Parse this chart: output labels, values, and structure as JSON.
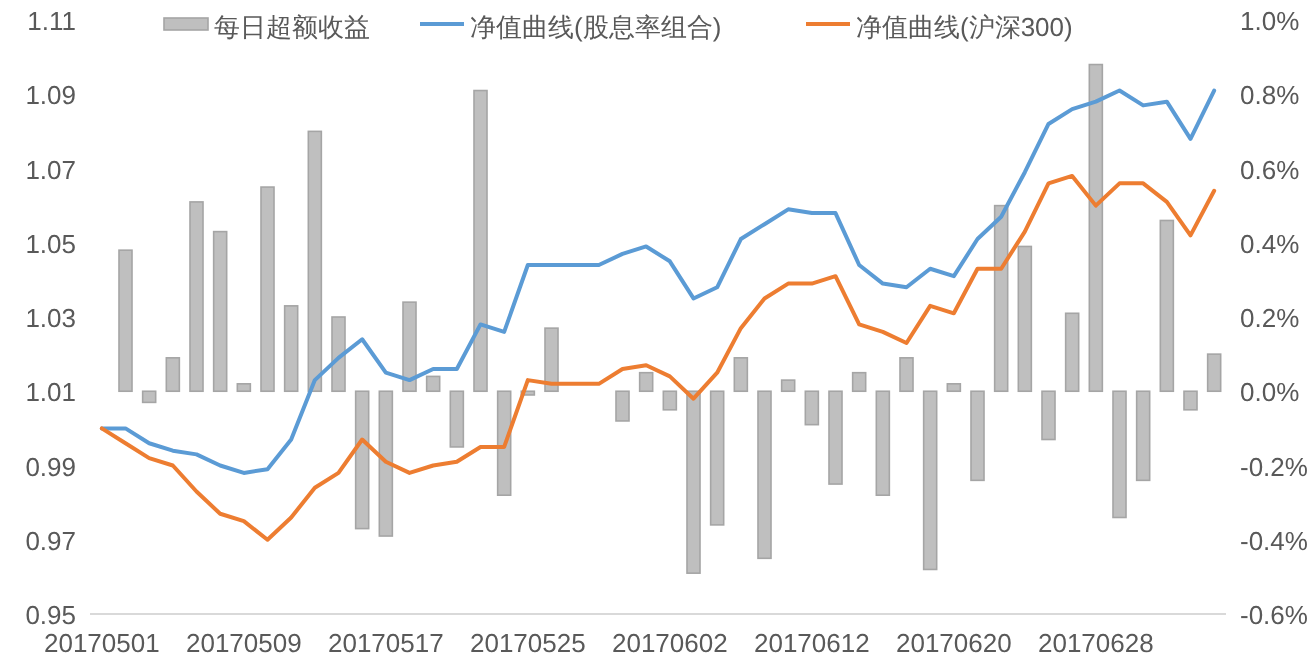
{
  "chart_data": {
    "type": "bar",
    "legend": "top",
    "categories": [
      "20170501",
      null,
      null,
      null,
      null,
      null,
      "20170509",
      null,
      null,
      null,
      null,
      null,
      "20170517",
      null,
      null,
      null,
      null,
      null,
      "20170525",
      null,
      null,
      null,
      null,
      null,
      "20170602",
      null,
      null,
      null,
      null,
      null,
      "20170612",
      null,
      null,
      null,
      null,
      null,
      "20170620",
      null,
      null,
      null,
      null,
      null,
      "20170628",
      null,
      null,
      null,
      null,
      null
    ],
    "ylim": [
      0.95,
      1.11
    ],
    "yticks": [
      0.95,
      0.97,
      0.99,
      1.01,
      1.03,
      1.05,
      1.07,
      1.09,
      1.11
    ],
    "y2lim": [
      -0.6,
      1.0
    ],
    "y2ticks": [
      {
        "value": -0.6,
        "label": "-0.6%"
      },
      {
        "value": -0.4,
        "label": "-0.4%"
      },
      {
        "value": -0.2,
        "label": "-0.2%"
      },
      {
        "value": 0,
        "label": "0.0%"
      },
      {
        "value": 0.2,
        "label": "0.2%"
      },
      {
        "value": 0.4,
        "label": "0.4%"
      },
      {
        "value": 0.6,
        "label": "0.6%"
      },
      {
        "value": 0.8,
        "label": "0.8%"
      },
      {
        "value": 1.0,
        "label": "1.0%"
      }
    ],
    "series": [
      {
        "name": "每日超额收益",
        "axis": "y2",
        "color": "#bfbfbf",
        "values": [
          null,
          0.38,
          -0.03,
          0.09,
          0.51,
          0.43,
          0.02,
          0.55,
          0.23,
          0.7,
          0.2,
          -0.37,
          -0.39,
          0.24,
          0.04,
          -0.15,
          0.81,
          -0.28,
          -0.01,
          0.17,
          0,
          0,
          -0.08,
          0.05,
          -0.05,
          -0.49,
          -0.36,
          0.09,
          -0.45,
          0.03,
          -0.09,
          -0.25,
          0.05,
          -0.28,
          0.09,
          -0.48,
          0.02,
          -0.24,
          0.5,
          0.39,
          -0.13,
          0.21,
          0.88,
          -0.34,
          -0.24,
          0.46,
          -0.05,
          0.1
        ]
      },
      {
        "name": "净值曲线(股息率组合)",
        "type": "line",
        "axis": "y",
        "color": "#5b9bd5",
        "values": [
          1.0,
          1.0,
          0.996,
          0.994,
          0.993,
          0.99,
          0.988,
          0.989,
          0.997,
          1.013,
          1.019,
          1.024,
          1.015,
          1.013,
          1.016,
          1.016,
          1.028,
          1.026,
          1.044,
          1.044,
          1.044,
          1.044,
          1.047,
          1.049,
          1.045,
          1.035,
          1.038,
          1.051,
          1.055,
          1.059,
          1.058,
          1.058,
          1.044,
          1.039,
          1.038,
          1.043,
          1.041,
          1.051,
          1.057,
          1.069,
          1.082,
          1.086,
          1.088,
          1.091,
          1.087,
          1.088,
          1.078,
          1.091
        ]
      },
      {
        "name": "净值曲线(沪深300)",
        "type": "line",
        "axis": "y",
        "color": "#ed7d31",
        "values": [
          1.0,
          0.996,
          0.992,
          0.99,
          0.983,
          0.977,
          0.975,
          0.97,
          0.976,
          0.984,
          0.988,
          0.997,
          0.991,
          0.988,
          0.99,
          0.991,
          0.995,
          0.995,
          1.013,
          1.012,
          1.012,
          1.012,
          1.016,
          1.017,
          1.014,
          1.008,
          1.015,
          1.027,
          1.035,
          1.039,
          1.039,
          1.041,
          1.028,
          1.026,
          1.023,
          1.033,
          1.031,
          1.043,
          1.043,
          1.053,
          1.066,
          1.068,
          1.06,
          1.066,
          1.066,
          1.061,
          1.052,
          1.064
        ]
      }
    ]
  }
}
